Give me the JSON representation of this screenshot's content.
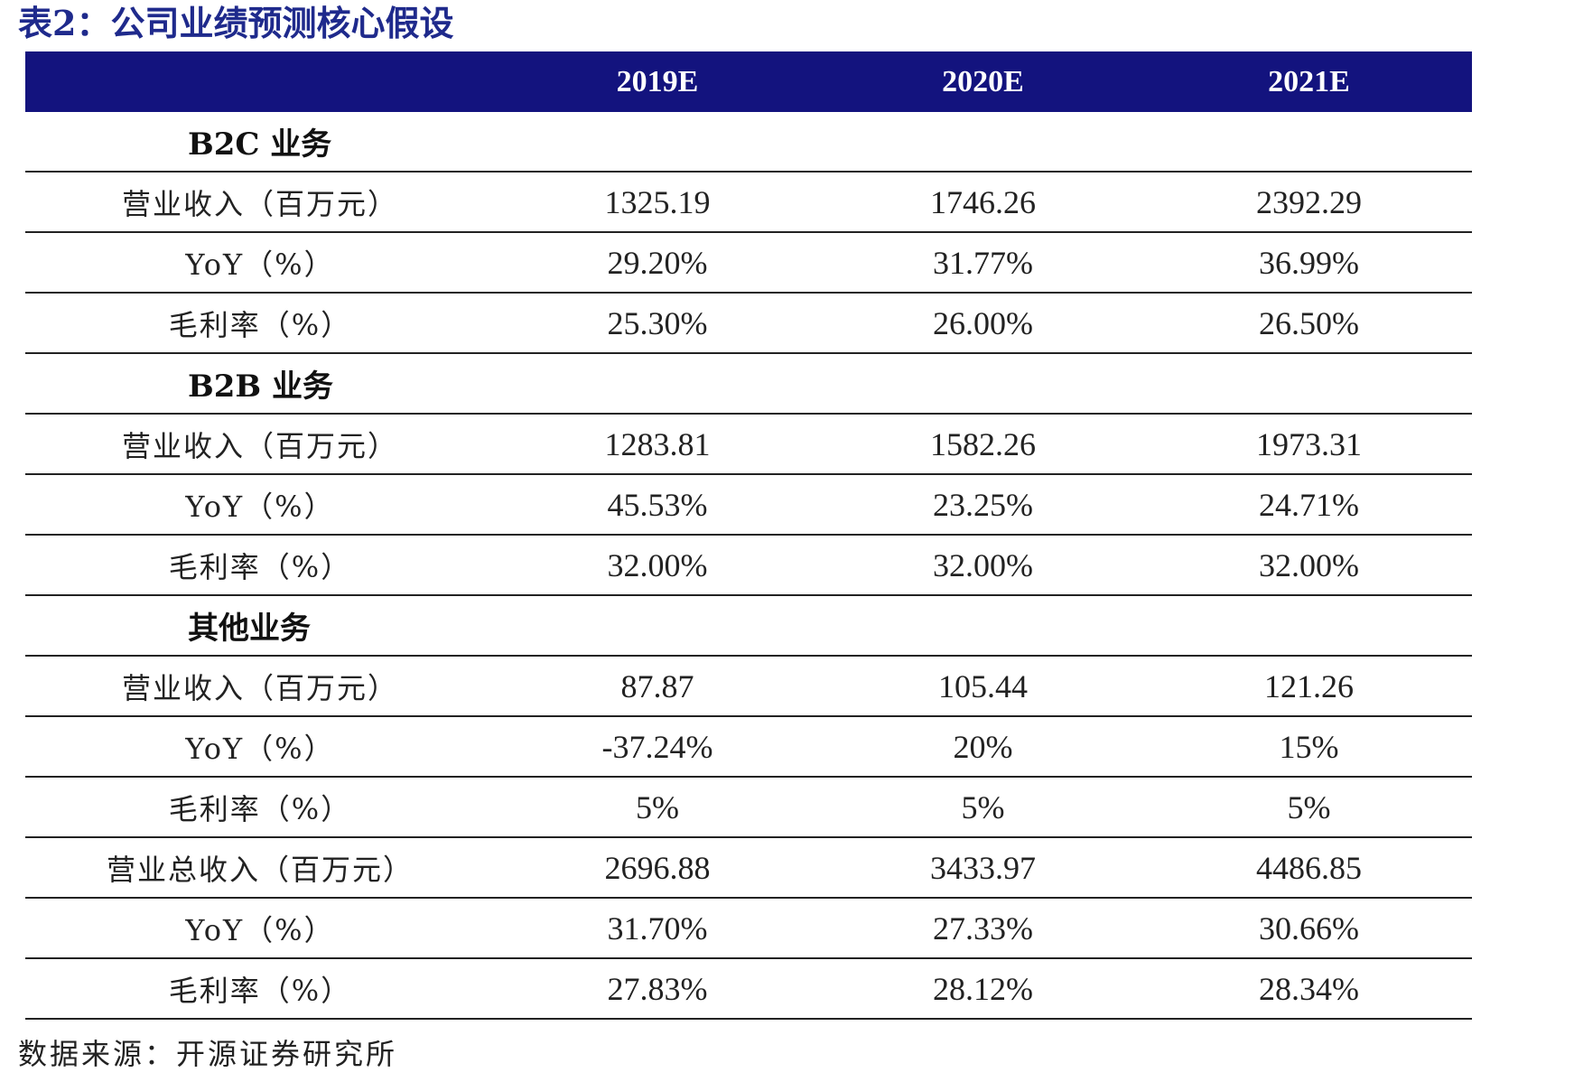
{
  "title": "表2：公司业绩预测核心假设",
  "header": {
    "col0": "",
    "col1": "2019E",
    "col2": "2020E",
    "col3": "2021E"
  },
  "rows": [
    {
      "type": "section",
      "label": "B2C 业务"
    },
    {
      "type": "data",
      "label": "营业收入（百万元）",
      "v2019": "1325.19",
      "v2020": "1746.26",
      "v2021": "2392.29"
    },
    {
      "type": "data",
      "label": "YoY（%）",
      "v2019": "29.20%",
      "v2020": "31.77%",
      "v2021": "36.99%"
    },
    {
      "type": "data",
      "label": "毛利率（%）",
      "v2019": "25.30%",
      "v2020": "26.00%",
      "v2021": "26.50%"
    },
    {
      "type": "section",
      "label": "B2B 业务"
    },
    {
      "type": "data",
      "label": "营业收入（百万元）",
      "v2019": "1283.81",
      "v2020": "1582.26",
      "v2021": "1973.31"
    },
    {
      "type": "data",
      "label": "YoY（%）",
      "v2019": "45.53%",
      "v2020": "23.25%",
      "v2021": "24.71%"
    },
    {
      "type": "data",
      "label": "毛利率（%）",
      "v2019": "32.00%",
      "v2020": "32.00%",
      "v2021": "32.00%"
    },
    {
      "type": "section",
      "label": "其他业务"
    },
    {
      "type": "data",
      "label": "营业收入（百万元）",
      "v2019": "87.87",
      "v2020": "105.44",
      "v2021": "121.26"
    },
    {
      "type": "data",
      "label": "YoY（%）",
      "v2019": "-37.24%",
      "v2020": "20%",
      "v2021": "15%"
    },
    {
      "type": "data",
      "label": "毛利率（%）",
      "v2019": "5%",
      "v2020": "5%",
      "v2021": "5%"
    },
    {
      "type": "data",
      "label": "营业总收入（百万元）",
      "v2019": "2696.88",
      "v2020": "3433.97",
      "v2021": "4486.85"
    },
    {
      "type": "data",
      "label": "YoY（%）",
      "v2019": "31.70%",
      "v2020": "27.33%",
      "v2021": "30.66%"
    },
    {
      "type": "data",
      "label": "毛利率（%）",
      "v2019": "27.83%",
      "v2020": "28.12%",
      "v2021": "28.34%"
    }
  ],
  "source": "数据来源：开源证券研究所",
  "colors": {
    "header_bg": "#13137e",
    "title": "#1f2a8c"
  }
}
